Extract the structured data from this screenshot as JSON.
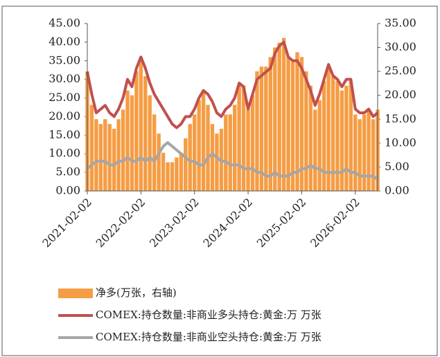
{
  "chart_data": {
    "type": "bar-line",
    "categories": [
      "2021-02-02",
      null,
      null,
      null,
      null,
      null,
      null,
      null,
      null,
      null,
      null,
      null,
      "2022-02-02",
      null,
      null,
      null,
      null,
      null,
      null,
      null,
      null,
      null,
      null,
      null,
      "2023-02-02",
      null,
      null,
      null,
      null,
      null,
      null,
      null,
      null,
      null,
      null,
      null,
      "2024-02-02",
      null,
      null,
      null,
      null,
      null,
      null,
      null,
      null,
      null,
      null,
      null,
      "2025-02-02",
      null,
      null,
      null,
      null,
      null,
      null,
      null,
      null,
      null,
      null,
      null,
      "2026-02-02",
      null,
      null,
      null,
      null,
      null
    ],
    "series": [
      {
        "name": "净多(万张，右轴)",
        "kind": "bar",
        "axis": "y2",
        "color": "#f59d45",
        "values": [
          25,
          18,
          15,
          14,
          15,
          14,
          13,
          15,
          17,
          21,
          20,
          25,
          28,
          24,
          20,
          16,
          12,
          8,
          6,
          6,
          7,
          8,
          11,
          14,
          16,
          19,
          21,
          18,
          14,
          12,
          13,
          16,
          16,
          18,
          22,
          22,
          17,
          20,
          25,
          26,
          26,
          28,
          30,
          31,
          32,
          28,
          27,
          29,
          28,
          25,
          22,
          17,
          19,
          23,
          26,
          24,
          23,
          21,
          22,
          23,
          16,
          15,
          16,
          17,
          15,
          17
        ]
      },
      {
        "name": "COMEX:持仓数量:非商业多头持仓:黄金:万 万张",
        "kind": "line",
        "color": "#c0504d",
        "values": [
          32,
          26,
          21,
          22,
          23,
          21,
          20,
          22,
          25,
          30,
          28,
          33,
          36,
          33,
          29,
          26,
          24,
          22,
          20,
          18,
          17,
          18,
          20,
          20,
          22,
          25,
          27,
          26,
          24,
          21,
          20,
          22,
          23,
          25,
          29,
          28,
          22,
          26,
          30,
          31,
          32,
          33,
          37,
          39,
          40,
          36,
          35,
          35,
          33,
          30,
          27,
          23,
          26,
          30,
          34,
          31,
          30,
          28,
          30,
          30,
          22,
          21,
          21,
          22,
          20,
          21
        ]
      },
      {
        "name": "COMEX:持仓数量:非商业空头持仓:黄金:万 万张",
        "kind": "line",
        "color": "#a6a6a6",
        "values": [
          6,
          7,
          8,
          8,
          8,
          7,
          7,
          8,
          8,
          9,
          8,
          8,
          9,
          8,
          9,
          8,
          10,
          12,
          13,
          12,
          11,
          10,
          9,
          8,
          8,
          7,
          7,
          9,
          10,
          9,
          8,
          8,
          7,
          7,
          7,
          6,
          6,
          6,
          5,
          5,
          4,
          4,
          5,
          4,
          4,
          4,
          5,
          5,
          6,
          6,
          7,
          6,
          6,
          5,
          5,
          5,
          5,
          5,
          6,
          5,
          5,
          4,
          4,
          4,
          4,
          3
        ]
      }
    ],
    "ylim": [
      0,
      45
    ],
    "yticks": [
      {
        "value": 0,
        "label": "0.00"
      },
      {
        "value": 5,
        "label": "5.00"
      },
      {
        "value": 10,
        "label": "10.00"
      },
      {
        "value": 15,
        "label": "15.00"
      },
      {
        "value": 20,
        "label": "20.00"
      },
      {
        "value": 25,
        "label": "25.00"
      },
      {
        "value": 30,
        "label": "30.00"
      },
      {
        "value": 35,
        "label": "35.00"
      },
      {
        "value": 40,
        "label": "40.00"
      },
      {
        "value": 45,
        "label": "45.00"
      }
    ],
    "y2lim": [
      0,
      35
    ],
    "y2ticks": [
      {
        "value": 0,
        "label": "0.00"
      },
      {
        "value": 5,
        "label": "5.00"
      },
      {
        "value": 10,
        "label": "10.00"
      },
      {
        "value": 15,
        "label": "15.00"
      },
      {
        "value": 20,
        "label": "20.00"
      },
      {
        "value": 25,
        "label": "25.00"
      },
      {
        "value": 30,
        "label": "30.00"
      },
      {
        "value": 35,
        "label": "35.00"
      }
    ]
  }
}
